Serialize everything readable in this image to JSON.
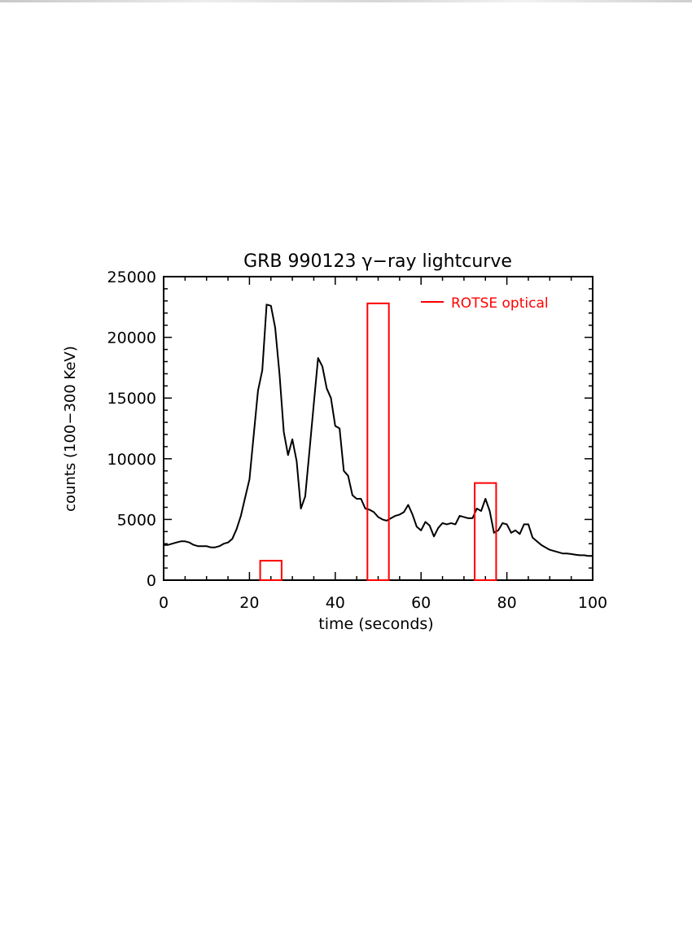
{
  "chart_data": {
    "type": "line",
    "title": "GRB 990123 γ−ray lightcurve",
    "xlabel": "time (seconds)",
    "ylabel": "counts (100−300 KeV)",
    "xlim": [
      0,
      100
    ],
    "ylim": [
      0,
      25000
    ],
    "xticks": [
      0,
      20,
      40,
      60,
      80,
      100
    ],
    "yticks": [
      0,
      5000,
      10000,
      15000,
      20000,
      25000
    ],
    "grid": false,
    "legend_position": "top-right",
    "series": [
      {
        "color": "#000000",
        "x": [
          0,
          1,
          2,
          3,
          4,
          5,
          6,
          7,
          8,
          9,
          10,
          11,
          12,
          13,
          14,
          15,
          16,
          17,
          18,
          19,
          20,
          21,
          22,
          23,
          24,
          25,
          26,
          27,
          28,
          29,
          30,
          31,
          32,
          33,
          34,
          35,
          36,
          37,
          38,
          39,
          40,
          41,
          42,
          43,
          44,
          45,
          46,
          47,
          48,
          49,
          50,
          51,
          52,
          53,
          54,
          55,
          56,
          57,
          58,
          59,
          60,
          61,
          62,
          63,
          64,
          65,
          66,
          67,
          68,
          69,
          70,
          71,
          72,
          73,
          74,
          75,
          76,
          77,
          78,
          79,
          80,
          81,
          82,
          83,
          84,
          85,
          86,
          87,
          88,
          89,
          90,
          91,
          92,
          93,
          94,
          95,
          96,
          97,
          98,
          99,
          100
        ],
        "values": [
          2900,
          2900,
          3000,
          3100,
          3200,
          3200,
          3100,
          2900,
          2800,
          2800,
          2800,
          2700,
          2700,
          2800,
          3000,
          3100,
          3400,
          4200,
          5300,
          6800,
          8300,
          12000,
          15600,
          17300,
          22700,
          22600,
          20800,
          17000,
          12200,
          10300,
          11600,
          9800,
          5900,
          6900,
          10700,
          14500,
          18300,
          17600,
          15800,
          15000,
          12700,
          12500,
          9000,
          8600,
          7000,
          6700,
          6700,
          5900,
          5800,
          5600,
          5200,
          5000,
          4900,
          5100,
          5300,
          5400,
          5600,
          6200,
          5400,
          4400,
          4100,
          4800,
          4500,
          3600,
          4300,
          4700,
          4600,
          4700,
          4600,
          5300,
          5200,
          5100,
          5100,
          5900,
          5700,
          6700,
          5700,
          3900,
          4100,
          4700,
          4600,
          3900,
          4100,
          3800,
          4600,
          4600,
          3500,
          3200,
          2900,
          2700,
          2500,
          2400,
          2300,
          2200,
          2200,
          2150,
          2100,
          2050,
          2050,
          2000,
          2000
        ]
      },
      {
        "name": "ROTSE optical",
        "color": "#ff0000",
        "type": "bar",
        "bins": [
          {
            "x0": 22.5,
            "x1": 27.5,
            "value": 1600
          },
          {
            "x0": 47.5,
            "x1": 52.5,
            "value": 22800
          },
          {
            "x0": 72.5,
            "x1": 77.5,
            "value": 8000
          }
        ]
      }
    ]
  }
}
